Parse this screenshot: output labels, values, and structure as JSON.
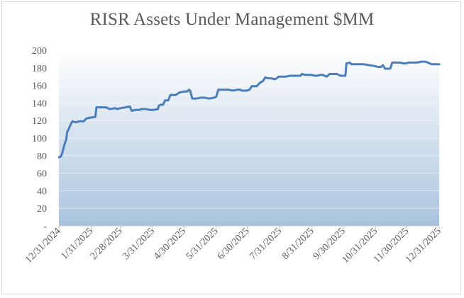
{
  "chart_data": {
    "type": "line",
    "title": "RISR Assets Under Management $MM",
    "xlabel": "",
    "ylabel": "",
    "ylim": [
      0,
      200
    ],
    "y_ticks": [
      "-",
      "20",
      "40",
      "60",
      "80",
      "100",
      "120",
      "140",
      "160",
      "180",
      "200"
    ],
    "x_tick_labels": [
      "12/31/2024",
      "1/31/2025",
      "2/28/2025",
      "3/31/2025",
      "4/30/2025",
      "5/31/2025",
      "6/30/2025",
      "7/31/2025",
      "8/31/2025",
      "9/30/2025",
      "10/31/2025",
      "11/30/2025",
      "12/31/2025"
    ],
    "grid": true,
    "legend": "none",
    "line_color": "#4a7ebb",
    "plot_gradient": [
      "#ffffff",
      "#a9c3dd"
    ],
    "series": [
      {
        "name": "",
        "points": [
          [
            "2024-12-31",
            78
          ],
          [
            "2025-01-02",
            79
          ],
          [
            "2025-01-03",
            82
          ],
          [
            "2025-01-05",
            91
          ],
          [
            "2025-01-06",
            95
          ],
          [
            "2025-01-07",
            98
          ],
          [
            "2025-01-08",
            107
          ],
          [
            "2025-01-09",
            109
          ],
          [
            "2025-01-10",
            112
          ],
          [
            "2025-01-12",
            117
          ],
          [
            "2025-01-13",
            119
          ],
          [
            "2025-01-16",
            118
          ],
          [
            "2025-01-20",
            119
          ],
          [
            "2025-01-24",
            119
          ],
          [
            "2025-01-26",
            122
          ],
          [
            "2025-01-29",
            123
          ],
          [
            "2025-02-04",
            124
          ],
          [
            "2025-02-05",
            135
          ],
          [
            "2025-02-10",
            135
          ],
          [
            "2025-02-14",
            135
          ],
          [
            "2025-02-18",
            133
          ],
          [
            "2025-02-23",
            134
          ],
          [
            "2025-02-25",
            133
          ],
          [
            "2025-02-28",
            134
          ],
          [
            "2025-03-05",
            135
          ],
          [
            "2025-03-09",
            136
          ],
          [
            "2025-03-11",
            131
          ],
          [
            "2025-03-14",
            132
          ],
          [
            "2025-03-18",
            132
          ],
          [
            "2025-03-20",
            133
          ],
          [
            "2025-03-25",
            133
          ],
          [
            "2025-03-28",
            132
          ],
          [
            "2025-04-01",
            132
          ],
          [
            "2025-04-05",
            133
          ],
          [
            "2025-04-06",
            137
          ],
          [
            "2025-04-08",
            138
          ],
          [
            "2025-04-10",
            138
          ],
          [
            "2025-04-12",
            143
          ],
          [
            "2025-04-15",
            143
          ],
          [
            "2025-04-17",
            149
          ],
          [
            "2025-04-20",
            149
          ],
          [
            "2025-04-22",
            149
          ],
          [
            "2025-04-26",
            152
          ],
          [
            "2025-04-30",
            153
          ],
          [
            "2025-05-03",
            153
          ],
          [
            "2025-05-05",
            155
          ],
          [
            "2025-05-06",
            154
          ],
          [
            "2025-05-08",
            145
          ],
          [
            "2025-05-12",
            145
          ],
          [
            "2025-05-16",
            146
          ],
          [
            "2025-05-20",
            146
          ],
          [
            "2025-05-24",
            145
          ],
          [
            "2025-05-29",
            146
          ],
          [
            "2025-05-31",
            147
          ],
          [
            "2025-06-02",
            155
          ],
          [
            "2025-06-08",
            155
          ],
          [
            "2025-06-12",
            155
          ],
          [
            "2025-06-16",
            154
          ],
          [
            "2025-06-20",
            155
          ],
          [
            "2025-06-23",
            155
          ],
          [
            "2025-06-25",
            154
          ],
          [
            "2025-06-29",
            154
          ],
          [
            "2025-07-02",
            155
          ],
          [
            "2025-07-04",
            159
          ],
          [
            "2025-07-09",
            159
          ],
          [
            "2025-07-12",
            163
          ],
          [
            "2025-07-15",
            165
          ],
          [
            "2025-07-17",
            169
          ],
          [
            "2025-07-20",
            168
          ],
          [
            "2025-07-23",
            168
          ],
          [
            "2025-07-26",
            167
          ],
          [
            "2025-07-28",
            168
          ],
          [
            "2025-07-30",
            170
          ],
          [
            "2025-08-02",
            170
          ],
          [
            "2025-08-06",
            170
          ],
          [
            "2025-08-10",
            171
          ],
          [
            "2025-08-14",
            171
          ],
          [
            "2025-08-18",
            171
          ],
          [
            "2025-08-20",
            171
          ],
          [
            "2025-08-21",
            173
          ],
          [
            "2025-08-24",
            172
          ],
          [
            "2025-08-30",
            172
          ],
          [
            "2025-09-03",
            171
          ],
          [
            "2025-09-05",
            171
          ],
          [
            "2025-09-08",
            172
          ],
          [
            "2025-09-10",
            172
          ],
          [
            "2025-09-14",
            170
          ],
          [
            "2025-09-17",
            173
          ],
          [
            "2025-09-21",
            173
          ],
          [
            "2025-09-24",
            173
          ],
          [
            "2025-09-27",
            171
          ],
          [
            "2025-10-02",
            171
          ],
          [
            "2025-10-03",
            185
          ],
          [
            "2025-10-06",
            186
          ],
          [
            "2025-10-08",
            184
          ],
          [
            "2025-10-11",
            184
          ],
          [
            "2025-10-15",
            184
          ],
          [
            "2025-10-20",
            184
          ],
          [
            "2025-10-25",
            183
          ],
          [
            "2025-10-30",
            182
          ],
          [
            "2025-11-02",
            181
          ],
          [
            "2025-11-05",
            181
          ],
          [
            "2025-11-07",
            183
          ],
          [
            "2025-11-09",
            179
          ],
          [
            "2025-11-14",
            179
          ],
          [
            "2025-11-16",
            186
          ],
          [
            "2025-11-20",
            186
          ],
          [
            "2025-11-23",
            186
          ],
          [
            "2025-11-27",
            185
          ],
          [
            "2025-11-29",
            185
          ],
          [
            "2025-12-02",
            186
          ],
          [
            "2025-12-06",
            186
          ],
          [
            "2025-12-10",
            186
          ],
          [
            "2025-12-14",
            187
          ],
          [
            "2025-12-18",
            187
          ],
          [
            "2025-12-22",
            185
          ],
          [
            "2025-12-24",
            184
          ],
          [
            "2025-12-27",
            184
          ],
          [
            "2025-12-31",
            184
          ]
        ]
      }
    ]
  }
}
